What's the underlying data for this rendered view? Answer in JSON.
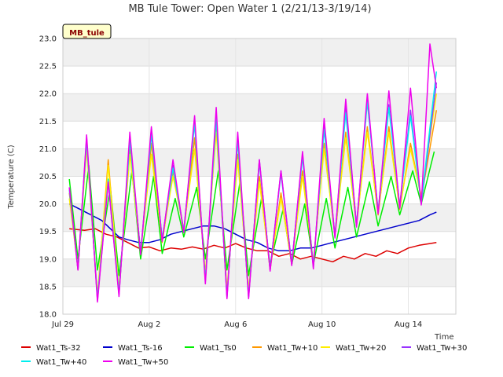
{
  "chart_data": {
    "type": "line",
    "title": "MB Tule Tower: Open Water 1 (2/21/13-3/19/14)",
    "xlabel": "Time",
    "ylabel": "Temperature (C)",
    "badge": "MB_tule",
    "ylim": [
      18.0,
      23.0
    ],
    "xlim": [
      0,
      18.2
    ],
    "x_unit": "days since Jul 29",
    "x_ticks": [
      {
        "pos": 0,
        "label": "Jul 29"
      },
      {
        "pos": 4,
        "label": "Aug 2"
      },
      {
        "pos": 8,
        "label": "Aug 6"
      },
      {
        "pos": 12,
        "label": "Aug 10"
      },
      {
        "pos": 16,
        "label": "Aug 14"
      }
    ],
    "y_ticks": [
      18.0,
      18.5,
      19.0,
      19.5,
      20.0,
      20.5,
      21.0,
      21.5,
      22.0,
      22.5,
      23.0
    ],
    "grid": true,
    "legend_position": "bottom",
    "series": [
      {
        "name": "Wat1_Ts-32",
        "color": "#dd0000",
        "x": [
          0.3,
          1,
          1.5,
          2,
          2.5,
          3,
          3.5,
          4,
          4.5,
          5,
          5.5,
          6,
          6.5,
          7,
          7.5,
          8,
          8.5,
          9,
          9.5,
          10,
          10.5,
          11,
          11.5,
          12,
          12.5,
          13,
          13.5,
          14,
          14.5,
          15,
          15.5,
          16,
          16.5,
          17,
          17.3
        ],
        "y": [
          19.55,
          19.52,
          19.55,
          19.45,
          19.4,
          19.3,
          19.2,
          19.22,
          19.15,
          19.2,
          19.18,
          19.22,
          19.18,
          19.25,
          19.2,
          19.28,
          19.2,
          19.15,
          19.15,
          19.05,
          19.1,
          19.0,
          19.05,
          19.0,
          18.95,
          19.05,
          19.0,
          19.1,
          19.05,
          19.15,
          19.1,
          19.2,
          19.25,
          19.28,
          19.3
        ]
      },
      {
        "name": "Wat1_Ts-16",
        "color": "#0000cc",
        "x": [
          0.3,
          0.8,
          1.3,
          1.8,
          2.2,
          2.6,
          3,
          3.5,
          4,
          4.5,
          5,
          5.5,
          6,
          6.5,
          7,
          7.5,
          8,
          8.5,
          9,
          9.5,
          10,
          10.5,
          11,
          11.5,
          12,
          12.5,
          13,
          13.5,
          14,
          14.5,
          15,
          15.5,
          16,
          16.5,
          17,
          17.3
        ],
        "y": [
          20.0,
          19.9,
          19.8,
          19.7,
          19.55,
          19.4,
          19.35,
          19.3,
          19.3,
          19.35,
          19.45,
          19.5,
          19.55,
          19.6,
          19.6,
          19.55,
          19.45,
          19.35,
          19.3,
          19.2,
          19.15,
          19.15,
          19.2,
          19.2,
          19.25,
          19.3,
          19.35,
          19.4,
          19.45,
          19.5,
          19.55,
          19.6,
          19.65,
          19.7,
          19.8,
          19.85
        ]
      },
      {
        "name": "Wat1_Ts0",
        "color": "#00ee00",
        "x": [
          0.3,
          0.7,
          1.2,
          1.6,
          2.2,
          2.6,
          3.2,
          3.6,
          4.2,
          4.6,
          5.2,
          5.6,
          6.2,
          6.6,
          7.2,
          7.6,
          8.2,
          8.6,
          9.2,
          9.6,
          10.2,
          10.6,
          11.2,
          11.6,
          12.2,
          12.6,
          13.2,
          13.6,
          14.2,
          14.6,
          15.2,
          15.6,
          16.2,
          16.6,
          17.2
        ],
        "y": [
          20.45,
          19.0,
          20.7,
          18.8,
          20.3,
          18.7,
          20.6,
          19.0,
          20.5,
          19.1,
          20.1,
          19.4,
          20.3,
          19.0,
          20.6,
          18.8,
          20.4,
          18.7,
          20.1,
          18.9,
          19.9,
          18.9,
          20.0,
          18.9,
          20.1,
          19.2,
          20.3,
          19.4,
          20.4,
          19.6,
          20.5,
          19.8,
          20.6,
          20.0,
          20.95
        ]
      },
      {
        "name": "Wat1_Tw+10",
        "color": "#ff9900",
        "x": [
          0.3,
          0.7,
          1.1,
          1.6,
          2.1,
          2.6,
          3.1,
          3.6,
          4.1,
          4.6,
          5.1,
          5.6,
          6.1,
          6.6,
          7.1,
          7.6,
          8.1,
          8.6,
          9.1,
          9.6,
          10.1,
          10.6,
          11.1,
          11.6,
          12.1,
          12.6,
          13.1,
          13.6,
          14.1,
          14.6,
          15.1,
          15.6,
          16.1,
          16.6,
          17.3
        ],
        "y": [
          20.2,
          18.8,
          21.1,
          18.3,
          20.8,
          18.4,
          21.0,
          19.1,
          21.1,
          19.3,
          20.6,
          19.5,
          21.2,
          18.7,
          21.4,
          18.4,
          20.9,
          18.4,
          20.5,
          18.8,
          20.2,
          18.9,
          20.6,
          18.9,
          21.1,
          19.4,
          21.3,
          19.6,
          21.4,
          19.8,
          21.4,
          19.9,
          21.1,
          20.1,
          21.7
        ]
      },
      {
        "name": "Wat1_Tw+20",
        "color": "#ffee00",
        "x": [
          0.3,
          0.7,
          1.1,
          1.6,
          2.1,
          2.6,
          3.1,
          3.6,
          4.1,
          4.6,
          5.1,
          5.6,
          6.1,
          6.6,
          7.1,
          7.6,
          8.1,
          8.6,
          9.1,
          9.6,
          10.1,
          10.6,
          11.1,
          11.6,
          12.1,
          12.6,
          13.1,
          13.6,
          14.1,
          14.6,
          15.1,
          15.6,
          16.1,
          16.6,
          17.3
        ],
        "y": [
          20.1,
          18.85,
          21.0,
          18.35,
          20.7,
          18.45,
          20.9,
          19.15,
          20.9,
          19.35,
          20.5,
          19.55,
          21.0,
          18.75,
          21.3,
          18.45,
          20.8,
          18.45,
          20.4,
          18.85,
          20.1,
          18.95,
          20.5,
          18.95,
          21.0,
          19.45,
          21.2,
          19.65,
          21.3,
          19.85,
          21.3,
          19.95,
          21.0,
          20.15,
          22.0
        ]
      },
      {
        "name": "Wat1_Tw+30",
        "color": "#9933ff",
        "x": [
          0.3,
          0.7,
          1.1,
          1.6,
          2.1,
          2.6,
          3.1,
          3.6,
          4.1,
          4.6,
          5.1,
          5.6,
          6.1,
          6.6,
          7.1,
          7.6,
          8.1,
          8.6,
          9.1,
          9.6,
          10.1,
          10.6,
          11.1,
          11.6,
          12.1,
          12.6,
          13.1,
          13.6,
          14.1,
          14.6,
          15.1,
          15.6,
          16.1,
          16.6,
          17.3
        ],
        "y": [
          20.3,
          18.8,
          21.2,
          18.25,
          20.4,
          18.35,
          21.2,
          19.1,
          21.3,
          19.35,
          20.7,
          19.5,
          21.5,
          18.6,
          21.6,
          18.3,
          21.2,
          18.3,
          20.8,
          18.8,
          20.6,
          18.9,
          20.9,
          18.85,
          21.4,
          19.4,
          21.8,
          19.6,
          21.9,
          19.85,
          21.8,
          19.95,
          21.7,
          20.0,
          22.2
        ]
      },
      {
        "name": "Wat1_Tw+40",
        "color": "#00eeee",
        "x": [
          0.3,
          0.7,
          1.1,
          1.6,
          2.1,
          2.6,
          3.1,
          3.6,
          4.1,
          4.6,
          5.1,
          5.6,
          6.1,
          6.6,
          7.1,
          7.6,
          8.1,
          8.6,
          9.1,
          9.6,
          10.1,
          10.6,
          11.1,
          11.6,
          12.1,
          12.6,
          13.1,
          13.6,
          14.1,
          14.6,
          15.1,
          15.6,
          16.1,
          16.6,
          17.3
        ],
        "y": [
          20.25,
          18.82,
          21.15,
          18.28,
          20.45,
          18.38,
          21.15,
          19.12,
          21.25,
          19.37,
          20.65,
          19.52,
          21.45,
          18.62,
          21.55,
          18.32,
          21.15,
          18.32,
          20.75,
          18.82,
          20.55,
          18.92,
          20.85,
          18.87,
          21.35,
          19.42,
          21.65,
          19.62,
          21.85,
          19.87,
          21.75,
          19.97,
          21.6,
          20.02,
          22.4
        ]
      },
      {
        "name": "Wat1_Tw+50",
        "color": "#ee00ee",
        "x": [
          0.3,
          0.7,
          1.1,
          1.6,
          2.1,
          2.6,
          3.1,
          3.6,
          4.1,
          4.6,
          5.1,
          5.6,
          6.1,
          6.6,
          7.1,
          7.6,
          8.1,
          8.6,
          9.1,
          9.6,
          10.1,
          10.6,
          11.1,
          11.6,
          12.1,
          12.6,
          13.1,
          13.6,
          14.1,
          14.6,
          15.1,
          15.6,
          16.1,
          16.6,
          17.0,
          17.3
        ],
        "y": [
          20.3,
          18.8,
          21.25,
          18.22,
          20.4,
          18.32,
          21.3,
          19.08,
          21.4,
          19.32,
          20.8,
          19.48,
          21.6,
          18.55,
          21.75,
          18.28,
          21.3,
          18.28,
          20.8,
          18.78,
          20.6,
          18.88,
          20.95,
          18.82,
          21.55,
          19.38,
          21.9,
          19.58,
          22.0,
          19.82,
          22.05,
          19.92,
          22.1,
          19.98,
          22.9,
          22.1
        ]
      }
    ]
  }
}
